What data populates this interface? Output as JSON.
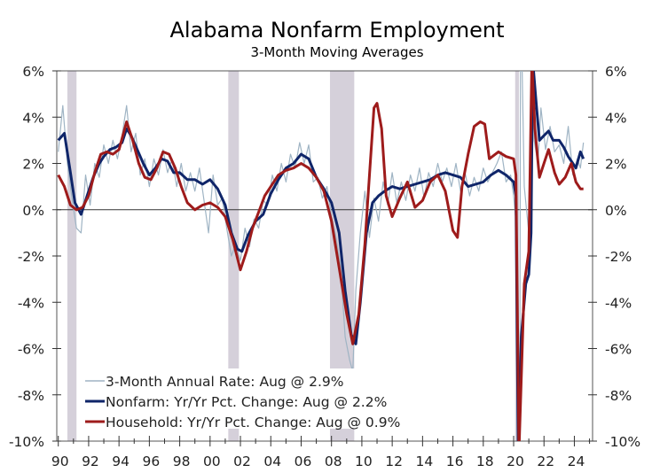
{
  "chart_data": {
    "type": "line",
    "title": "Alabama Nonfarm Employment",
    "subtitle": "3-Month Moving Averages",
    "xlabel": "",
    "ylabel": "",
    "xlim": [
      1989.9,
      2025.2
    ],
    "ylim": [
      -10,
      6
    ],
    "x_ticks": [
      1990,
      1992,
      1994,
      1996,
      1998,
      2000,
      2002,
      2004,
      2006,
      2008,
      2010,
      2012,
      2014,
      2016,
      2018,
      2020,
      2022,
      2024
    ],
    "x_tick_labels": [
      "90",
      "92",
      "94",
      "96",
      "98",
      "00",
      "02",
      "04",
      "06",
      "08",
      "10",
      "12",
      "14",
      "16",
      "18",
      "20",
      "22",
      "24"
    ],
    "y_ticks": [
      6,
      4,
      2,
      0,
      -2,
      -4,
      -6,
      -8,
      -10
    ],
    "y_tick_labels": [
      "6%",
      "4%",
      "2%",
      "0%",
      "-2%",
      "-4%",
      "-6%",
      "-8%",
      "-10%"
    ],
    "legend_position": "bottom-left",
    "recessions": [
      [
        1990.6,
        1991.2
      ],
      [
        2001.2,
        2001.9
      ],
      [
        2007.9,
        2009.5
      ],
      [
        2020.1,
        2020.35
      ]
    ],
    "series": [
      {
        "name": "3-Month Annual Rate: Aug @ 2.9%",
        "color": "#9fb4c4",
        "points": [
          [
            1990,
            2.5
          ],
          [
            1990.3,
            4.5
          ],
          [
            1990.6,
            2.0
          ],
          [
            1990.9,
            0.5
          ],
          [
            1991.2,
            -0.8
          ],
          [
            1991.5,
            -1.0
          ],
          [
            1991.8,
            1.5
          ],
          [
            1992.1,
            0.2
          ],
          [
            1992.4,
            2.0
          ],
          [
            1992.7,
            1.4
          ],
          [
            1993,
            2.8
          ],
          [
            1993.3,
            2.0
          ],
          [
            1993.6,
            3.0
          ],
          [
            1993.9,
            2.2
          ],
          [
            1994.2,
            3.2
          ],
          [
            1994.5,
            4.5
          ],
          [
            1994.8,
            2.5
          ],
          [
            1995.1,
            3.3
          ],
          [
            1995.4,
            1.5
          ],
          [
            1995.7,
            2.2
          ],
          [
            1996,
            1.0
          ],
          [
            1996.3,
            2.2
          ],
          [
            1996.6,
            1.5
          ],
          [
            1996.9,
            2.6
          ],
          [
            1997.2,
            1.6
          ],
          [
            1997.5,
            2.2
          ],
          [
            1997.8,
            1.0
          ],
          [
            1998.1,
            2.0
          ],
          [
            1998.4,
            0.8
          ],
          [
            1998.7,
            1.6
          ],
          [
            1999,
            0.8
          ],
          [
            1999.3,
            1.8
          ],
          [
            1999.6,
            0.4
          ],
          [
            1999.9,
            -1.0
          ],
          [
            2000.2,
            1.5
          ],
          [
            2000.5,
            0.2
          ],
          [
            2000.8,
            0.5
          ],
          [
            2001.1,
            -0.8
          ],
          [
            2001.4,
            -2.0
          ],
          [
            2001.7,
            -1.5
          ],
          [
            2002,
            -2.2
          ],
          [
            2002.3,
            -0.8
          ],
          [
            2002.6,
            -1.6
          ],
          [
            2002.9,
            -0.4
          ],
          [
            2003.2,
            -0.8
          ],
          [
            2003.5,
            0.4
          ],
          [
            2003.8,
            0.2
          ],
          [
            2004.1,
            1.5
          ],
          [
            2004.4,
            0.8
          ],
          [
            2004.7,
            2.0
          ],
          [
            2005,
            1.2
          ],
          [
            2005.3,
            2.4
          ],
          [
            2005.6,
            1.8
          ],
          [
            2005.9,
            2.9
          ],
          [
            2006.2,
            2.0
          ],
          [
            2006.5,
            2.8
          ],
          [
            2006.8,
            1.2
          ],
          [
            2007.1,
            1.4
          ],
          [
            2007.4,
            0.5
          ],
          [
            2007.7,
            1.0
          ],
          [
            2008,
            -0.3
          ],
          [
            2008.3,
            -1.2
          ],
          [
            2008.6,
            -2.5
          ],
          [
            2008.9,
            -5.5
          ],
          [
            2009.2,
            -6.5
          ],
          [
            2009.4,
            -7.0
          ],
          [
            2009.6,
            -3.5
          ],
          [
            2009.9,
            -1.0
          ],
          [
            2010.2,
            0.8
          ],
          [
            2010.5,
            -1.2
          ],
          [
            2010.8,
            0.5
          ],
          [
            2011.1,
            -0.5
          ],
          [
            2011.4,
            1.2
          ],
          [
            2011.7,
            0.2
          ],
          [
            2012,
            1.6
          ],
          [
            2012.3,
            0.3
          ],
          [
            2012.6,
            1.2
          ],
          [
            2012.9,
            0.4
          ],
          [
            2013.2,
            1.5
          ],
          [
            2013.5,
            0.8
          ],
          [
            2013.8,
            1.8
          ],
          [
            2014.1,
            0.5
          ],
          [
            2014.4,
            1.6
          ],
          [
            2014.7,
            1.0
          ],
          [
            2015,
            2.0
          ],
          [
            2015.3,
            1.2
          ],
          [
            2015.6,
            1.8
          ],
          [
            2015.9,
            1.0
          ],
          [
            2016.2,
            2.0
          ],
          [
            2016.5,
            0.8
          ],
          [
            2016.8,
            1.6
          ],
          [
            2017.1,
            0.6
          ],
          [
            2017.4,
            1.4
          ],
          [
            2017.7,
            0.8
          ],
          [
            2018,
            1.8
          ],
          [
            2018.3,
            1.2
          ],
          [
            2018.6,
            1.6
          ],
          [
            2018.9,
            2.0
          ],
          [
            2019.2,
            2.5
          ],
          [
            2019.5,
            1.2
          ],
          [
            2019.8,
            1.5
          ],
          [
            2020.0,
            0.6
          ],
          [
            2020.15,
            -0.5
          ],
          [
            2020.25,
            -10.5
          ],
          [
            2020.4,
            -10.5
          ],
          [
            2020.45,
            6.5
          ],
          [
            2020.55,
            6.5
          ],
          [
            2020.7,
            1.0
          ],
          [
            2021,
            -1.0
          ],
          [
            2021.2,
            6.5
          ],
          [
            2021.35,
            3.0
          ],
          [
            2021.6,
            2.0
          ],
          [
            2021.8,
            4.4
          ],
          [
            2022.1,
            2.6
          ],
          [
            2022.4,
            3.6
          ],
          [
            2022.7,
            2.5
          ],
          [
            2023,
            2.8
          ],
          [
            2023.3,
            2.0
          ],
          [
            2023.6,
            3.6
          ],
          [
            2023.9,
            1.5
          ],
          [
            2024.2,
            2.2
          ],
          [
            2024.4,
            1.8
          ],
          [
            2024.6,
            2.9
          ]
        ]
      },
      {
        "name": "Nonfarm: Yr/Yr Pct. Change: Aug @ 2.2%",
        "color": "#0f2569",
        "points": [
          [
            1990,
            3.0
          ],
          [
            1990.4,
            3.3
          ],
          [
            1990.8,
            1.6
          ],
          [
            1991.1,
            0.3
          ],
          [
            1991.5,
            -0.2
          ],
          [
            1991.9,
            0.6
          ],
          [
            1992.3,
            1.4
          ],
          [
            1992.7,
            2.0
          ],
          [
            1993,
            2.3
          ],
          [
            1993.4,
            2.6
          ],
          [
            1993.8,
            2.7
          ],
          [
            1994.2,
            2.9
          ],
          [
            1994.5,
            3.5
          ],
          [
            1994.8,
            3.2
          ],
          [
            1995.2,
            2.6
          ],
          [
            1995.6,
            2.0
          ],
          [
            1996,
            1.5
          ],
          [
            1996.4,
            1.8
          ],
          [
            1996.8,
            2.2
          ],
          [
            1997.2,
            2.1
          ],
          [
            1997.6,
            1.6
          ],
          [
            1998,
            1.6
          ],
          [
            1998.5,
            1.3
          ],
          [
            1999,
            1.3
          ],
          [
            1999.5,
            1.1
          ],
          [
            2000,
            1.3
          ],
          [
            2000.5,
            0.9
          ],
          [
            2001,
            0.2
          ],
          [
            2001.4,
            -1.0
          ],
          [
            2001.8,
            -1.7
          ],
          [
            2002.1,
            -1.8
          ],
          [
            2002.5,
            -1.1
          ],
          [
            2003,
            -0.5
          ],
          [
            2003.5,
            -0.2
          ],
          [
            2004,
            0.7
          ],
          [
            2004.5,
            1.3
          ],
          [
            2005,
            1.8
          ],
          [
            2005.5,
            2.0
          ],
          [
            2006,
            2.4
          ],
          [
            2006.5,
            2.2
          ],
          [
            2007,
            1.4
          ],
          [
            2007.5,
            0.9
          ],
          [
            2008,
            0.3
          ],
          [
            2008.5,
            -1.0
          ],
          [
            2008.9,
            -3.5
          ],
          [
            2009.3,
            -5.4
          ],
          [
            2009.6,
            -5.8
          ],
          [
            2009.9,
            -4.0
          ],
          [
            2010.3,
            -1.0
          ],
          [
            2010.7,
            0.3
          ],
          [
            2011.1,
            0.6
          ],
          [
            2011.5,
            0.8
          ],
          [
            2012,
            1.0
          ],
          [
            2012.5,
            0.9
          ],
          [
            2013,
            1.0
          ],
          [
            2013.5,
            1.1
          ],
          [
            2014,
            1.2
          ],
          [
            2014.5,
            1.3
          ],
          [
            2015,
            1.5
          ],
          [
            2015.5,
            1.6
          ],
          [
            2016,
            1.5
          ],
          [
            2016.5,
            1.4
          ],
          [
            2017,
            1.0
          ],
          [
            2017.5,
            1.1
          ],
          [
            2018,
            1.2
          ],
          [
            2018.5,
            1.5
          ],
          [
            2019,
            1.7
          ],
          [
            2019.5,
            1.5
          ],
          [
            2020,
            1.2
          ],
          [
            2020.15,
            0.6
          ],
          [
            2020.3,
            -10.5
          ],
          [
            2020.5,
            -5.5
          ],
          [
            2020.8,
            -3.2
          ],
          [
            2021,
            -2.8
          ],
          [
            2021.15,
            -1.0
          ],
          [
            2021.25,
            6.5
          ],
          [
            2021.5,
            4.5
          ],
          [
            2021.7,
            3.0
          ],
          [
            2022,
            3.2
          ],
          [
            2022.3,
            3.4
          ],
          [
            2022.6,
            3.0
          ],
          [
            2023,
            3.0
          ],
          [
            2023.3,
            2.7
          ],
          [
            2023.6,
            2.3
          ],
          [
            2023.9,
            2.0
          ],
          [
            2024.1,
            1.8
          ],
          [
            2024.4,
            2.5
          ],
          [
            2024.6,
            2.2
          ]
        ]
      },
      {
        "name": "Household: Yr/Yr Pct. Change: Aug @ 0.9%",
        "color": "#9e1b1b",
        "points": [
          [
            1990,
            1.5
          ],
          [
            1990.4,
            1.0
          ],
          [
            1990.8,
            0.2
          ],
          [
            1991.2,
            0.0
          ],
          [
            1991.6,
            0.1
          ],
          [
            1992,
            0.6
          ],
          [
            1992.4,
            1.6
          ],
          [
            1992.8,
            2.4
          ],
          [
            1993.2,
            2.5
          ],
          [
            1993.6,
            2.4
          ],
          [
            1994,
            2.6
          ],
          [
            1994.5,
            3.8
          ],
          [
            1994.9,
            3.0
          ],
          [
            1995.3,
            2.0
          ],
          [
            1995.7,
            1.4
          ],
          [
            1996.1,
            1.3
          ],
          [
            1996.5,
            1.8
          ],
          [
            1996.9,
            2.5
          ],
          [
            1997.3,
            2.4
          ],
          [
            1997.7,
            1.8
          ],
          [
            1998.1,
            1.0
          ],
          [
            1998.5,
            0.3
          ],
          [
            1999,
            0.0
          ],
          [
            1999.5,
            0.2
          ],
          [
            2000,
            0.3
          ],
          [
            2000.5,
            0.1
          ],
          [
            2001,
            -0.3
          ],
          [
            2001.5,
            -1.3
          ],
          [
            2002,
            -2.6
          ],
          [
            2002.4,
            -1.8
          ],
          [
            2002.8,
            -0.8
          ],
          [
            2003.2,
            -0.1
          ],
          [
            2003.6,
            0.6
          ],
          [
            2004,
            1.0
          ],
          [
            2004.5,
            1.5
          ],
          [
            2005,
            1.7
          ],
          [
            2005.5,
            1.8
          ],
          [
            2006,
            2.0
          ],
          [
            2006.5,
            1.8
          ],
          [
            2007,
            1.4
          ],
          [
            2007.5,
            0.8
          ],
          [
            2008,
            -0.5
          ],
          [
            2008.5,
            -2.5
          ],
          [
            2009,
            -4.5
          ],
          [
            2009.4,
            -5.8
          ],
          [
            2009.8,
            -4.5
          ],
          [
            2010.2,
            -1.5
          ],
          [
            2010.5,
            1.5
          ],
          [
            2010.8,
            4.4
          ],
          [
            2011,
            4.6
          ],
          [
            2011.3,
            3.5
          ],
          [
            2011.6,
            0.6
          ],
          [
            2012,
            -0.3
          ],
          [
            2012.5,
            0.5
          ],
          [
            2013,
            1.2
          ],
          [
            2013.5,
            0.1
          ],
          [
            2014,
            0.4
          ],
          [
            2014.5,
            1.2
          ],
          [
            2015,
            1.5
          ],
          [
            2015.5,
            0.8
          ],
          [
            2016,
            -0.9
          ],
          [
            2016.3,
            -1.2
          ],
          [
            2016.6,
            1.0
          ],
          [
            2017,
            2.4
          ],
          [
            2017.4,
            3.6
          ],
          [
            2017.8,
            3.8
          ],
          [
            2018.1,
            3.7
          ],
          [
            2018.4,
            2.2
          ],
          [
            2019,
            2.5
          ],
          [
            2019.5,
            2.3
          ],
          [
            2020,
            2.2
          ],
          [
            2020.15,
            1.5
          ],
          [
            2020.35,
            -10.5
          ],
          [
            2020.7,
            -3.2
          ],
          [
            2021,
            -1.8
          ],
          [
            2021.2,
            6.5
          ],
          [
            2021.4,
            3.5
          ],
          [
            2021.7,
            1.4
          ],
          [
            2022,
            2.0
          ],
          [
            2022.3,
            2.6
          ],
          [
            2022.7,
            1.6
          ],
          [
            2023,
            1.1
          ],
          [
            2023.4,
            1.4
          ],
          [
            2023.8,
            2.0
          ],
          [
            2024.1,
            1.2
          ],
          [
            2024.4,
            0.9
          ],
          [
            2024.6,
            0.9
          ]
        ]
      }
    ]
  }
}
